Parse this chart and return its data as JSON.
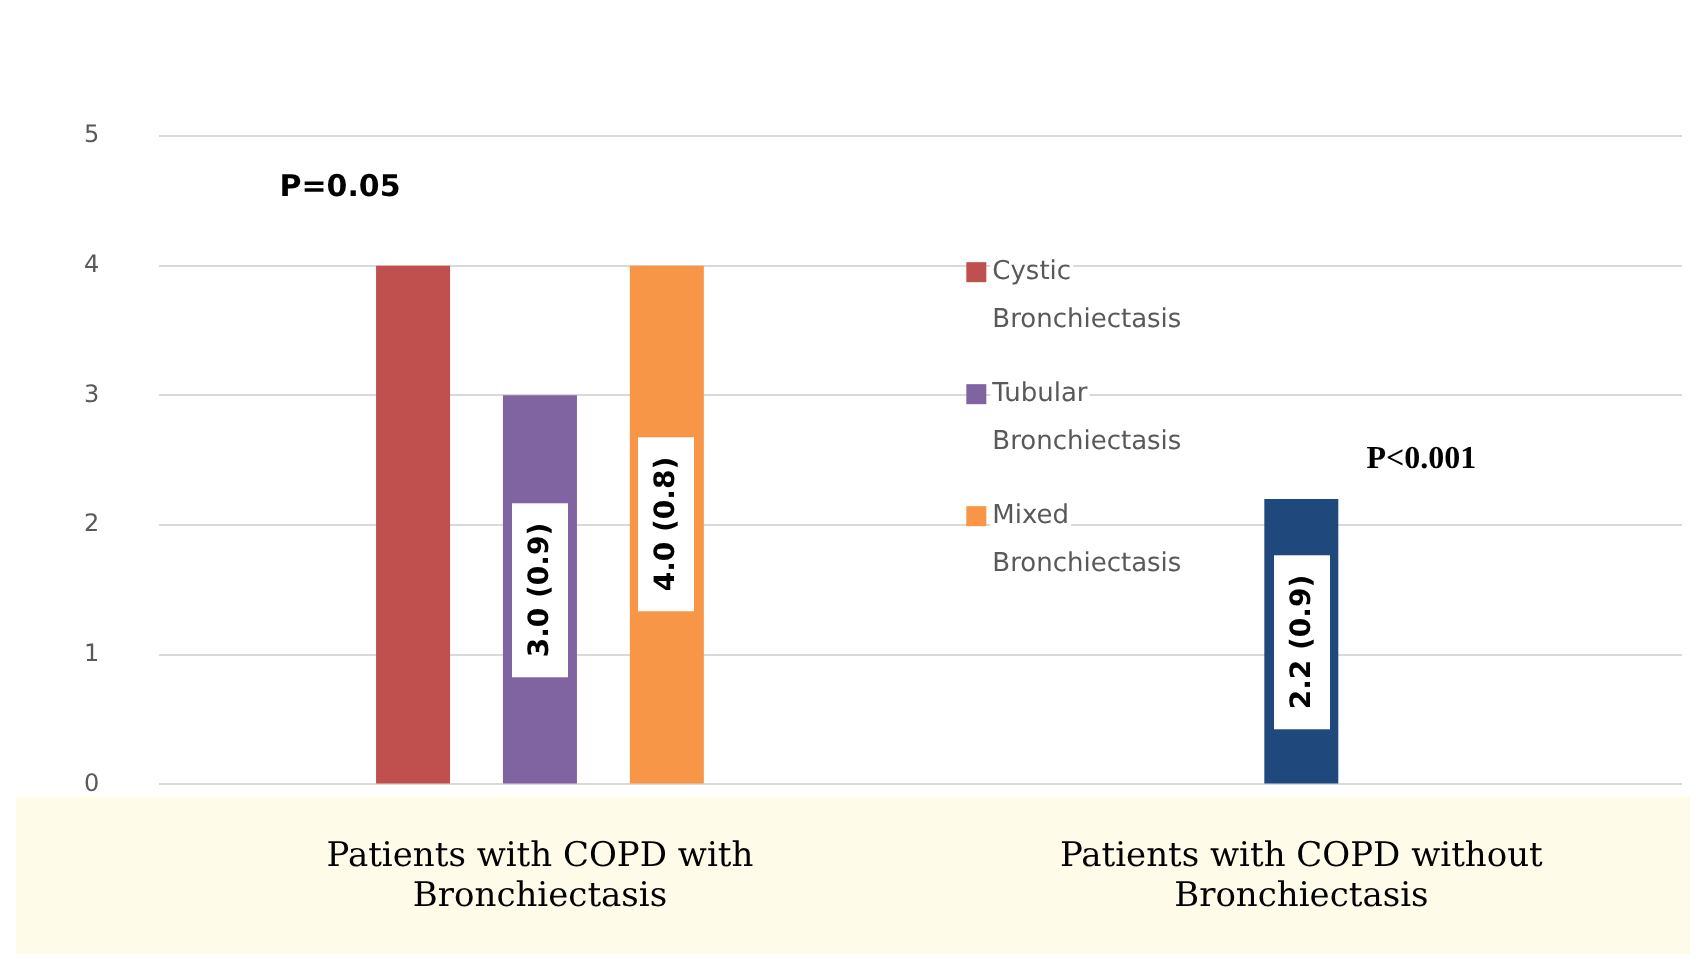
{
  "chart_data": {
    "type": "bar",
    "categories": [
      "Patients with COPD with Bronchiectasis",
      "Patients with COPD without Bronchiectasis"
    ],
    "series": [
      {
        "name": "Cystic Bronchiectasis",
        "color": "#c0504d",
        "values": [
          4.0,
          null
        ],
        "value_labels": [
          null,
          null
        ]
      },
      {
        "name": "Tubular Bronchiectasis",
        "color": "#8064a2",
        "values": [
          3.0,
          null
        ],
        "value_labels": [
          "3.0 (0.9)",
          null
        ]
      },
      {
        "name": "Mixed Bronchiectasis",
        "color": "#f79646",
        "values": [
          4.0,
          null
        ],
        "value_labels": [
          "4.0 (0.8)",
          null
        ]
      },
      {
        "color": "#1f497d",
        "values": [
          null,
          2.2
        ],
        "value_labels": [
          null,
          "2.2 (0.9)"
        ]
      }
    ],
    "ylim": [
      0,
      5
    ],
    "yticks": [
      0,
      1,
      2,
      3,
      4,
      5
    ],
    "grid": "y",
    "legend": "top",
    "annotations": [
      "P=0.05",
      "P<0.001"
    ]
  }
}
